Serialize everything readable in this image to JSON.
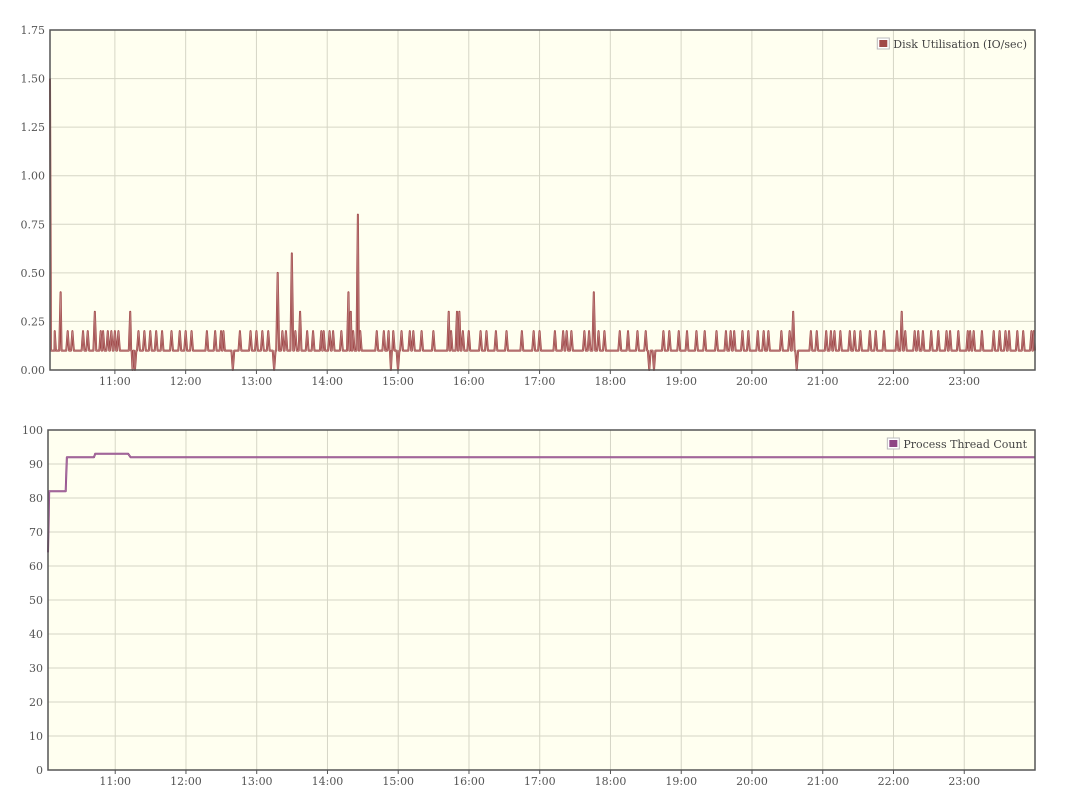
{
  "chart_data": [
    {
      "type": "line",
      "title": "",
      "xlabel": "",
      "ylabel": "",
      "x_ticks": [
        "11:00",
        "12:00",
        "13:00",
        "14:00",
        "15:00",
        "16:00",
        "17:00",
        "18:00",
        "19:00",
        "20:00",
        "21:00",
        "22:00",
        "23:00"
      ],
      "y_ticks": [
        "0.00",
        "0.25",
        "0.50",
        "0.75",
        "1.00",
        "1.25",
        "1.50",
        "1.75"
      ],
      "xlim": [
        "10:05",
        "24:00"
      ],
      "ylim": [
        0,
        1.75
      ],
      "legend_position": "top-right",
      "grid": true,
      "plot_background": "#fffff0",
      "series": [
        {
          "name": "Disk Utilisation (IO/sec)",
          "color": "#a04848",
          "baseline": 0.1,
          "points": [
            [
              "10:05",
              1.5
            ],
            [
              "10:07",
              0.1
            ],
            [
              "10:09",
              0.2
            ],
            [
              "10:10",
              0.1
            ],
            [
              "10:14",
              0.4
            ],
            [
              "10:16",
              0.1
            ],
            [
              "10:20",
              0.2
            ],
            [
              "10:24",
              0.2
            ],
            [
              "10:33",
              0.2
            ],
            [
              "10:37",
              0.2
            ],
            [
              "10:43",
              0.3
            ],
            [
              "10:48",
              0.2
            ],
            [
              "10:50",
              0.2
            ],
            [
              "10:54",
              0.2
            ],
            [
              "10:57",
              0.2
            ],
            [
              "11:00",
              0.2
            ],
            [
              "11:03",
              0.2
            ],
            [
              "11:13",
              0.3
            ],
            [
              "11:15",
              0.0
            ],
            [
              "11:17",
              0.0
            ],
            [
              "11:20",
              0.2
            ],
            [
              "11:25",
              0.2
            ],
            [
              "11:30",
              0.2
            ],
            [
              "11:35",
              0.2
            ],
            [
              "11:40",
              0.2
            ],
            [
              "11:48",
              0.2
            ],
            [
              "11:55",
              0.2
            ],
            [
              "12:00",
              0.2
            ],
            [
              "12:05",
              0.2
            ],
            [
              "12:18",
              0.2
            ],
            [
              "12:25",
              0.2
            ],
            [
              "12:30",
              0.2
            ],
            [
              "12:32",
              0.2
            ],
            [
              "12:40",
              0.0
            ],
            [
              "12:46",
              0.2
            ],
            [
              "12:55",
              0.2
            ],
            [
              "13:00",
              0.2
            ],
            [
              "13:05",
              0.2
            ],
            [
              "13:10",
              0.2
            ],
            [
              "13:15",
              0.0
            ],
            [
              "13:18",
              0.5
            ],
            [
              "13:22",
              0.2
            ],
            [
              "13:25",
              0.2
            ],
            [
              "13:30",
              0.6
            ],
            [
              "13:33",
              0.2
            ],
            [
              "13:37",
              0.3
            ],
            [
              "13:43",
              0.2
            ],
            [
              "13:48",
              0.2
            ],
            [
              "13:55",
              0.2
            ],
            [
              "13:57",
              0.2
            ],
            [
              "14:02",
              0.2
            ],
            [
              "14:05",
              0.2
            ],
            [
              "14:12",
              0.2
            ],
            [
              "14:18",
              0.4
            ],
            [
              "14:20",
              0.3
            ],
            [
              "14:22",
              0.2
            ],
            [
              "14:26",
              0.8
            ],
            [
              "14:28",
              0.2
            ],
            [
              "14:33",
              0.1
            ],
            [
              "14:42",
              0.2
            ],
            [
              "14:48",
              0.2
            ],
            [
              "14:52",
              0.2
            ],
            [
              "14:54",
              0.0
            ],
            [
              "14:56",
              0.2
            ],
            [
              "15:00",
              0.0
            ],
            [
              "15:03",
              0.2
            ],
            [
              "15:10",
              0.2
            ],
            [
              "15:13",
              0.2
            ],
            [
              "15:20",
              0.2
            ],
            [
              "15:30",
              0.2
            ],
            [
              "15:43",
              0.3
            ],
            [
              "15:45",
              0.2
            ],
            [
              "15:50",
              0.3
            ],
            [
              "15:52",
              0.3
            ],
            [
              "15:55",
              0.2
            ],
            [
              "16:00",
              0.2
            ],
            [
              "16:10",
              0.2
            ],
            [
              "16:15",
              0.2
            ],
            [
              "16:23",
              0.2
            ],
            [
              "16:32",
              0.2
            ],
            [
              "16:45",
              0.2
            ],
            [
              "16:55",
              0.2
            ],
            [
              "17:00",
              0.2
            ],
            [
              "17:13",
              0.2
            ],
            [
              "17:20",
              0.2
            ],
            [
              "17:23",
              0.2
            ],
            [
              "17:27",
              0.2
            ],
            [
              "17:38",
              0.2
            ],
            [
              "17:42",
              0.2
            ],
            [
              "17:46",
              0.4
            ],
            [
              "17:50",
              0.2
            ],
            [
              "17:55",
              0.2
            ],
            [
              "18:08",
              0.2
            ],
            [
              "18:15",
              0.2
            ],
            [
              "18:23",
              0.2
            ],
            [
              "18:30",
              0.2
            ],
            [
              "18:33",
              0.0
            ],
            [
              "18:37",
              0.0
            ],
            [
              "18:45",
              0.2
            ],
            [
              "18:50",
              0.2
            ],
            [
              "18:58",
              0.2
            ],
            [
              "19:05",
              0.2
            ],
            [
              "19:13",
              0.2
            ],
            [
              "19:20",
              0.2
            ],
            [
              "19:30",
              0.2
            ],
            [
              "19:38",
              0.2
            ],
            [
              "19:42",
              0.2
            ],
            [
              "19:45",
              0.2
            ],
            [
              "19:52",
              0.2
            ],
            [
              "19:57",
              0.2
            ],
            [
              "20:05",
              0.2
            ],
            [
              "20:10",
              0.2
            ],
            [
              "20:14",
              0.2
            ],
            [
              "20:25",
              0.2
            ],
            [
              "20:32",
              0.2
            ],
            [
              "20:35",
              0.3
            ],
            [
              "20:38",
              0.0
            ],
            [
              "20:50",
              0.2
            ],
            [
              "20:55",
              0.2
            ],
            [
              "21:03",
              0.2
            ],
            [
              "21:07",
              0.2
            ],
            [
              "21:10",
              0.2
            ],
            [
              "21:15",
              0.2
            ],
            [
              "21:23",
              0.2
            ],
            [
              "21:27",
              0.2
            ],
            [
              "21:32",
              0.2
            ],
            [
              "21:40",
              0.2
            ],
            [
              "21:45",
              0.2
            ],
            [
              "21:52",
              0.2
            ],
            [
              "22:03",
              0.2
            ],
            [
              "22:07",
              0.3
            ],
            [
              "22:10",
              0.2
            ],
            [
              "22:18",
              0.2
            ],
            [
              "22:21",
              0.2
            ],
            [
              "22:25",
              0.2
            ],
            [
              "22:32",
              0.2
            ],
            [
              "22:38",
              0.2
            ],
            [
              "22:45",
              0.2
            ],
            [
              "22:48",
              0.2
            ],
            [
              "22:55",
              0.2
            ],
            [
              "23:03",
              0.2
            ],
            [
              "23:05",
              0.2
            ],
            [
              "23:08",
              0.2
            ],
            [
              "23:15",
              0.2
            ],
            [
              "23:25",
              0.2
            ],
            [
              "23:30",
              0.2
            ],
            [
              "23:35",
              0.2
            ],
            [
              "23:38",
              0.2
            ],
            [
              "23:45",
              0.2
            ],
            [
              "23:50",
              0.2
            ],
            [
              "23:57",
              0.2
            ],
            [
              "23:59",
              0.2
            ]
          ]
        }
      ]
    },
    {
      "type": "line",
      "title": "",
      "xlabel": "",
      "ylabel": "",
      "x_ticks": [
        "11:00",
        "12:00",
        "13:00",
        "14:00",
        "15:00",
        "16:00",
        "17:00",
        "18:00",
        "19:00",
        "20:00",
        "21:00",
        "22:00",
        "23:00"
      ],
      "y_ticks": [
        "0",
        "10",
        "20",
        "30",
        "40",
        "50",
        "60",
        "70",
        "80",
        "90",
        "100"
      ],
      "xlim": [
        "10:03",
        "24:00"
      ],
      "ylim": [
        0,
        100
      ],
      "legend_position": "top-right",
      "grid": true,
      "plot_background": "#fffff0",
      "series": [
        {
          "name": "Process Thread Count",
          "color": "#8e4585",
          "points": [
            [
              "10:03",
              64
            ],
            [
              "10:04",
              82
            ],
            [
              "10:18",
              82
            ],
            [
              "10:19",
              92
            ],
            [
              "10:42",
              92
            ],
            [
              "10:43",
              93
            ],
            [
              "11:11",
              93
            ],
            [
              "11:13",
              92
            ],
            [
              "24:00",
              92
            ]
          ]
        }
      ]
    }
  ]
}
